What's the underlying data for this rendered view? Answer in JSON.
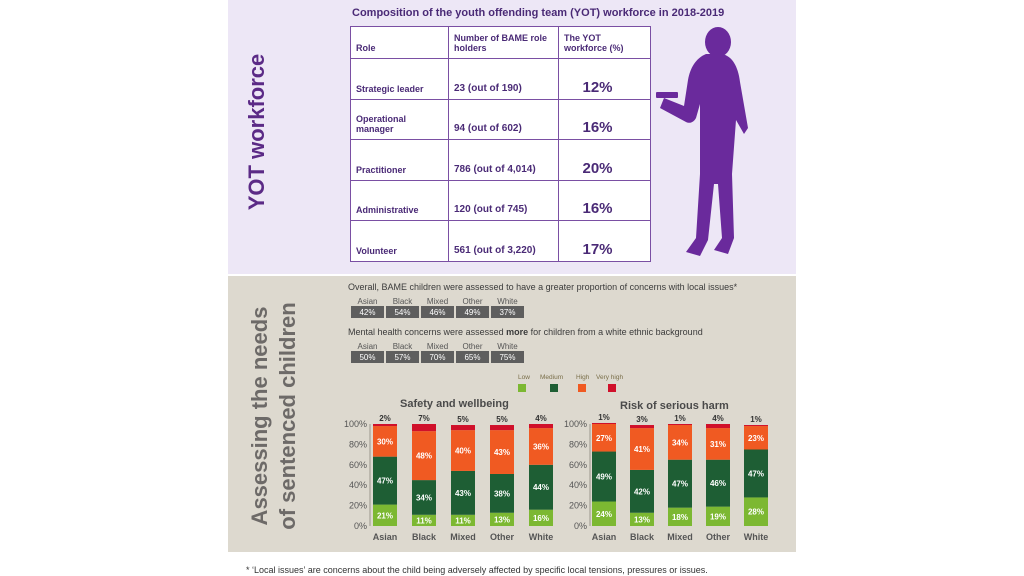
{
  "workforce": {
    "side_title": "YOT workforce",
    "table_title": "Composition of the youth offending team (YOT) workforce in 2018-2019",
    "headers": [
      "Role",
      "Number of BAME role holders",
      "The YOT workforce (%)"
    ],
    "rows": [
      {
        "role": "Strategic leader",
        "count": "23 (out of 190)",
        "percent": "12%"
      },
      {
        "role": "Operational manager",
        "count": "94 (out of 602)",
        "percent": "16%"
      },
      {
        "role": "Practitioner",
        "count": "786 (out of 4,014)",
        "percent": "20%"
      },
      {
        "role": "Administrative",
        "count": "120 (out of 745)",
        "percent": "16%"
      },
      {
        "role": "Volunteer",
        "count": "561 (out of 3,220)",
        "percent": "17%"
      }
    ],
    "figure_color": "#6a2a9c"
  },
  "needs": {
    "side_title_line1": "Assessing the needs",
    "side_title_line2": "of sentenced children",
    "local_issues": {
      "statement": "Overall, BAME children were assessed to have a greater proportion of concerns with local issues*",
      "groups": [
        "Asian",
        "Black",
        "Mixed",
        "Other",
        "White"
      ],
      "values": [
        "42%",
        "54%",
        "46%",
        "49%",
        "37%"
      ]
    },
    "mental_health": {
      "statement_before": "Mental health concerns were assessed ",
      "statement_bold": "more",
      "statement_after": " for children from a white ethnic background",
      "groups": [
        "Asian",
        "Black",
        "Mixed",
        "Other",
        "White"
      ],
      "values": [
        "50%",
        "57%",
        "70%",
        "65%",
        "75%"
      ]
    },
    "legend": [
      {
        "label": "Low",
        "color": "#7cb832"
      },
      {
        "label": "Medium",
        "color": "#1e5e34"
      },
      {
        "label": "High",
        "color": "#f05a22"
      },
      {
        "label": "Very high",
        "color": "#d0102a"
      }
    ]
  },
  "chart_data": [
    {
      "type": "bar",
      "stacked": true,
      "title": "Safety and wellbeing",
      "categories": [
        "Asian",
        "Black",
        "Mixed",
        "Other",
        "White"
      ],
      "ylim": [
        0,
        100
      ],
      "yticks": [
        "0%",
        "20%",
        "40%",
        "60%",
        "80%",
        "100%"
      ],
      "series": [
        {
          "name": "Low",
          "values": [
            21,
            11,
            11,
            13,
            16
          ],
          "labels": [
            "21%",
            "11%",
            "11%",
            "13%",
            "16%"
          ]
        },
        {
          "name": "Medium",
          "values": [
            47,
            34,
            43,
            38,
            44
          ],
          "labels": [
            "47%",
            "34%",
            "43%",
            "38%",
            "44%"
          ]
        },
        {
          "name": "High",
          "values": [
            30,
            48,
            40,
            43,
            36
          ],
          "labels": [
            "30%",
            "48%",
            "40%",
            "43%",
            "36%"
          ]
        },
        {
          "name": "Very high",
          "values": [
            2,
            7,
            5,
            5,
            4
          ],
          "labels": [
            "2%",
            "7%",
            "5%",
            "5%",
            "4%"
          ]
        }
      ]
    },
    {
      "type": "bar",
      "stacked": true,
      "title": "Risk of serious harm",
      "categories": [
        "Asian",
        "Black",
        "Mixed",
        "Other",
        "White"
      ],
      "ylim": [
        0,
        100
      ],
      "yticks": [
        "0%",
        "20%",
        "40%",
        "60%",
        "80%",
        "100%"
      ],
      "series": [
        {
          "name": "Low",
          "values": [
            24,
            13,
            18,
            19,
            28
          ],
          "labels": [
            "24%",
            "13%",
            "18%",
            "19%",
            "28%"
          ]
        },
        {
          "name": "Medium",
          "values": [
            49,
            42,
            47,
            46,
            47
          ],
          "labels": [
            "49%",
            "42%",
            "47%",
            "46%",
            "47%"
          ]
        },
        {
          "name": "High",
          "values": [
            27,
            41,
            34,
            31,
            23
          ],
          "labels": [
            "27%",
            "41%",
            "34%",
            "31%",
            "23%"
          ]
        },
        {
          "name": "Very high",
          "values": [
            1,
            3,
            1,
            4,
            1
          ],
          "labels": [
            "1%",
            "3%",
            "1%",
            "4%",
            "1%"
          ]
        }
      ]
    }
  ],
  "footnote": "* ‘Local issues’ are concerns about the child being adversely affected by specific local tensions, pressures or issues."
}
